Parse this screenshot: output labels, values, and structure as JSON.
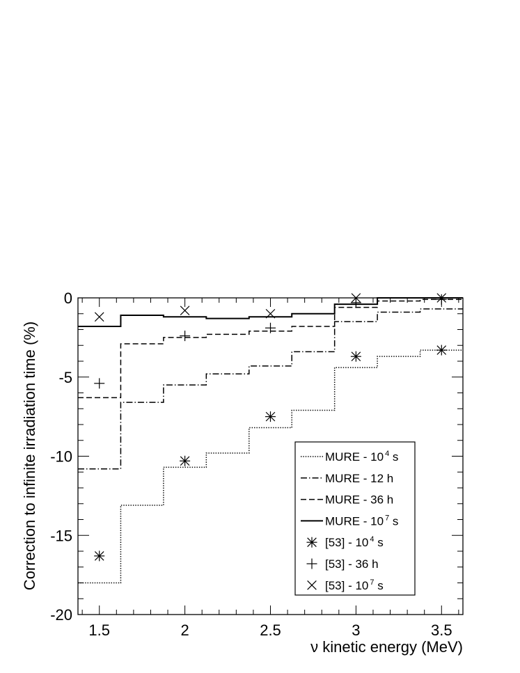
{
  "chart_data": {
    "type": "line",
    "title": "",
    "xlabel": "ν kinetic energy (MeV)",
    "ylabel": "Correction to infinite irradiation time (%)",
    "xlim": [
      1.375,
      3.625
    ],
    "ylim": [
      -20,
      0
    ],
    "xticks": [
      1.5,
      2,
      2.5,
      3,
      3.5
    ],
    "xtick_labels": [
      "1.5",
      "2",
      "2.5",
      "3",
      "3.5"
    ],
    "yticks": [
      -20,
      -15,
      -10,
      -5,
      0
    ],
    "ytick_labels": [
      "-20",
      "-15",
      "-10",
      "-5",
      "0"
    ],
    "grid": false,
    "legend_position": "bottom-right",
    "bin_edges": [
      1.375,
      1.625,
      1.875,
      2.125,
      2.375,
      2.625,
      2.875,
      3.125,
      3.375,
      3.625
    ],
    "series": [
      {
        "name": "MURE - 10^4 s",
        "label_main": "MURE - 10",
        "label_sup": "4",
        "label_tail": " s",
        "style": "dotted",
        "kind": "step",
        "values": [
          -18.0,
          -13.1,
          -10.7,
          -9.8,
          -8.2,
          -7.1,
          -4.4,
          -3.7,
          -3.3
        ]
      },
      {
        "name": "MURE - 12 h",
        "label_main": "MURE - 12 h",
        "label_sup": "",
        "label_tail": "",
        "style": "dashdot",
        "kind": "step",
        "values": [
          -10.8,
          -6.6,
          -5.5,
          -4.8,
          -4.3,
          -3.4,
          -1.5,
          -0.9,
          -0.7
        ]
      },
      {
        "name": "MURE - 36 h",
        "label_main": "MURE - 36 h",
        "label_sup": "",
        "label_tail": "",
        "style": "dashed",
        "kind": "step",
        "values": [
          -6.3,
          -2.9,
          -2.5,
          -2.3,
          -2.1,
          -1.8,
          -0.6,
          -0.2,
          -0.1
        ]
      },
      {
        "name": "MURE - 10^7 s",
        "label_main": "MURE - 10",
        "label_sup": "7",
        "label_tail": " s",
        "style": "solid",
        "kind": "step",
        "values": [
          -1.8,
          -1.1,
          -1.2,
          -1.3,
          -1.2,
          -1.0,
          -0.4,
          0.0,
          0.0
        ]
      },
      {
        "name": "[53] - 10^4 s",
        "label_main": "[53] - 10",
        "label_sup": "4",
        "label_tail": " s",
        "marker": "asterisk",
        "kind": "points",
        "x": [
          1.5,
          2,
          2.5,
          3,
          3.5
        ],
        "values": [
          -16.3,
          -10.3,
          -7.5,
          -3.7,
          -3.3
        ]
      },
      {
        "name": "[53] - 36 h",
        "label_main": "[53] - 36 h",
        "label_sup": "",
        "label_tail": "",
        "marker": "plus",
        "kind": "points",
        "x": [
          1.5,
          2,
          2.5,
          3,
          3.5
        ],
        "values": [
          -5.4,
          -2.4,
          -1.9,
          -0.3,
          -0.1
        ]
      },
      {
        "name": "[53] - 10^7 s",
        "label_main": "[53] - 10",
        "label_sup": "7",
        "label_tail": " s",
        "marker": "cross",
        "kind": "points",
        "x": [
          1.5,
          2,
          2.5,
          3,
          3.5
        ],
        "values": [
          -1.2,
          -0.8,
          -1.0,
          0.0,
          0.0
        ]
      }
    ]
  }
}
